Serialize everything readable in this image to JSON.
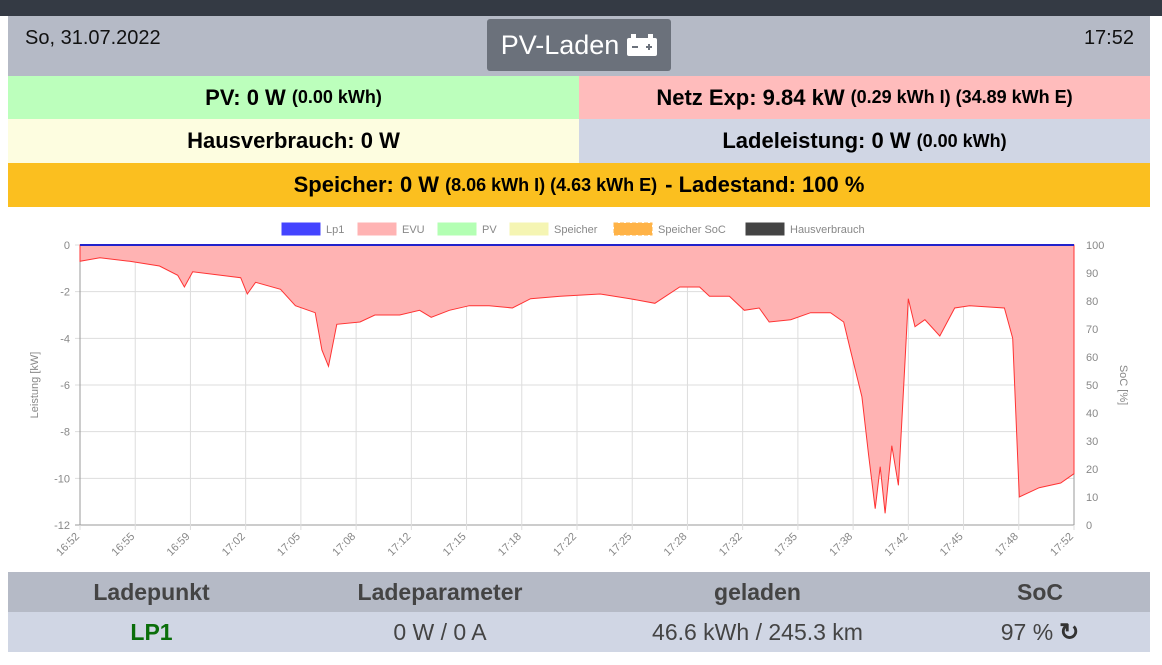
{
  "header": {
    "date": "So, 31.07.2022",
    "time": "17:52",
    "mode": "PV-Laden",
    "mode_icon": "car-battery-icon"
  },
  "stats": {
    "pv": "PV: 0 W",
    "pv_extra": "(0.00 kWh)",
    "netz": "Netz Exp: 9.84 kW",
    "netz_extra": "(0.29 kWh I) (34.89 kWh E)",
    "haus": "Hausverbrauch: 0 W",
    "lade": "Ladeleistung: 0 W",
    "lade_extra": "(0.00 kWh)",
    "speicher": "Speicher: 0 W",
    "speicher_extra": "(8.06 kWh I) (4.63 kWh E)",
    "speicher_soc": "- Ladestand: 100 %"
  },
  "colors": {
    "pv": "#bcffbc",
    "netz": "#ffbcbc",
    "haus": "#fdfde0",
    "lade": "#d0d6e4",
    "speicher": "#fbbf1f",
    "header": "#b5bac6",
    "lp_green": "#0a6e0a"
  },
  "chart_data": {
    "type": "area",
    "legend": [
      "Lp1",
      "EVU",
      "PV",
      "Speicher",
      "Speicher SoC",
      "Hausverbrauch"
    ],
    "legend_colors": [
      "#4444ff",
      "#ffb3b3",
      "#b3ffb3",
      "#f5f5b3",
      "#ffb347",
      "#444444"
    ],
    "ylabel": "Leistung [kW]",
    "y2label": "SoC [%]",
    "ylim": [
      -12,
      0
    ],
    "y2lim": [
      0,
      100
    ],
    "yticks": [
      "0",
      "-2",
      "-4",
      "-6",
      "-8",
      "-10",
      "-12"
    ],
    "y2ticks": [
      "100",
      "90",
      "80",
      "70",
      "60",
      "50",
      "40",
      "30",
      "20",
      "10",
      "0"
    ],
    "xticks": [
      "16:52",
      "16:55",
      "16:59",
      "17:02",
      "17:05",
      "17:08",
      "17:12",
      "17:15",
      "17:18",
      "17:22",
      "17:25",
      "17:28",
      "17:32",
      "17:35",
      "17:38",
      "17:42",
      "17:45",
      "17:48",
      "17:52"
    ],
    "xrange_minutes": [
      0,
      60
    ],
    "evu": {
      "minutes": [
        0,
        1.2,
        3.0,
        4.8,
        5.9,
        6.3,
        6.8,
        9.7,
        10.1,
        10.6,
        12.1,
        13.0,
        14.2,
        14.6,
        15.0,
        15.5,
        16.9,
        17.8,
        19.3,
        20.5,
        21.2,
        22.3,
        23.5,
        24.7,
        26.1,
        27.2,
        29.0,
        31.4,
        33.2,
        34.7,
        36.2,
        37.4,
        38.0,
        39.2,
        40.1,
        41.0,
        41.6,
        42.9,
        44.1,
        45.3,
        46.1,
        46.5,
        47.2,
        47.6,
        48.0,
        48.3,
        48.6,
        49.0,
        49.4,
        49.8,
        50.0,
        50.4,
        51.0,
        51.9,
        52.8,
        53.7,
        55.8,
        56.3,
        56.7,
        57.9,
        59.2,
        60
      ],
      "kw": [
        -0.7,
        -0.55,
        -0.7,
        -0.9,
        -1.3,
        -1.8,
        -1.15,
        -1.4,
        -2.1,
        -1.6,
        -1.9,
        -2.6,
        -2.9,
        -4.5,
        -5.2,
        -3.4,
        -3.3,
        -3.0,
        -3.0,
        -2.8,
        -3.1,
        -2.8,
        -2.6,
        -2.6,
        -2.7,
        -2.3,
        -2.2,
        -2.1,
        -2.3,
        -2.5,
        -1.8,
        -1.8,
        -2.2,
        -2.2,
        -2.8,
        -2.7,
        -3.3,
        -3.2,
        -2.9,
        -2.9,
        -3.3,
        -4.5,
        -6.5,
        -9,
        -11.3,
        -9.5,
        -11.5,
        -8.6,
        -10.3,
        -5,
        -2.3,
        -3.5,
        -3.2,
        -3.9,
        -2.7,
        -2.6,
        -2.7,
        -4,
        -10.8,
        -10.4,
        -10.2,
        -9.8
      ]
    },
    "lp1_kw": 0
  },
  "table": {
    "headers": [
      "Ladepunkt",
      "Ladeparameter",
      "geladen",
      "SoC"
    ],
    "row": {
      "name": "LP1",
      "param": "0 W / 0 A",
      "charged": "46.6 kWh / 245.3 km",
      "soc": "97 %",
      "refresh_icon": "refresh-icon"
    }
  }
}
